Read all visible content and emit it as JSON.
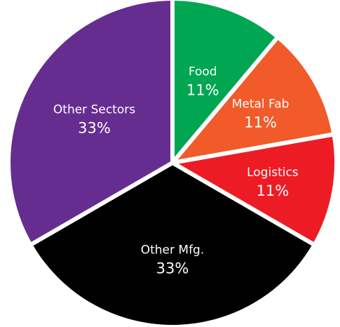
{
  "chart_data": {
    "type": "pie",
    "title": "",
    "slices": [
      {
        "label": "Food",
        "value": 11,
        "value_label": "11%",
        "color": "#00A651"
      },
      {
        "label": "Metal Fab",
        "value": 11,
        "value_label": "11%",
        "color": "#F15A29"
      },
      {
        "label": "Logistics",
        "value": 11,
        "value_label": "11%",
        "color": "#ED1C24"
      },
      {
        "label": "Other Mfg.",
        "value": 33,
        "value_label": "33%",
        "color": "#000000"
      },
      {
        "label": "Other Sectors",
        "value": 33,
        "value_label": "33%",
        "color": "#662D91"
      }
    ],
    "start_angle_deg": 0,
    "direction": "clockwise",
    "legend": "none"
  }
}
